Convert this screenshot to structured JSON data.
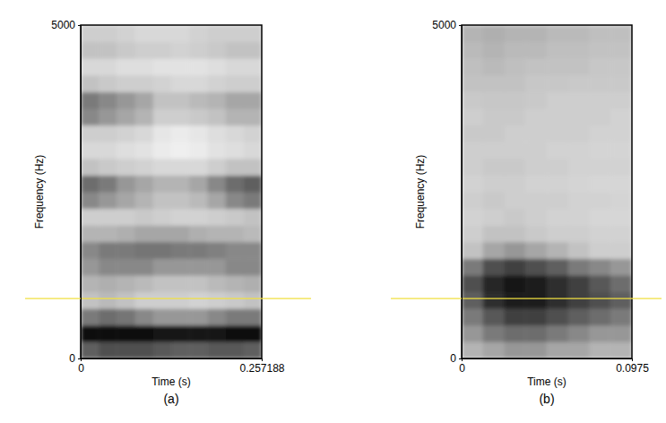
{
  "chart_data": [
    {
      "type": "heatmap",
      "label": "(a)",
      "x_label": "Time (s)",
      "y_label": "Frequency (Hz)",
      "xlim": [
        0,
        0.257188
      ],
      "ylim": [
        0,
        5000
      ],
      "xticks": [
        0,
        0.257188
      ],
      "yticks": [
        0,
        5000
      ],
      "zlim": [
        0,
        1
      ],
      "cursor": {
        "frequency": 900
      },
      "time_bins": [
        0,
        0.0257,
        0.0514,
        0.0772,
        0.1029,
        0.1286,
        0.1543,
        0.18,
        0.2058,
        0.2315,
        0.257188
      ],
      "freq_bins": [
        0,
        250,
        500,
        750,
        1000,
        1250,
        1500,
        1750,
        2000,
        2250,
        2500,
        2750,
        3000,
        3250,
        3500,
        3750,
        4000,
        4250,
        4500,
        4750,
        5000
      ],
      "cells": [
        [
          0.7,
          0.75,
          0.75,
          0.75,
          0.72,
          0.7,
          0.7,
          0.72,
          0.72,
          0.7
        ],
        [
          0.95,
          0.97,
          0.97,
          0.95,
          0.93,
          0.93,
          0.92,
          0.93,
          0.95,
          0.95
        ],
        [
          0.6,
          0.65,
          0.62,
          0.55,
          0.5,
          0.5,
          0.5,
          0.55,
          0.6,
          0.6
        ],
        [
          0.35,
          0.38,
          0.35,
          0.3,
          0.3,
          0.3,
          0.28,
          0.3,
          0.32,
          0.35
        ],
        [
          0.4,
          0.42,
          0.4,
          0.38,
          0.35,
          0.35,
          0.35,
          0.38,
          0.4,
          0.42
        ],
        [
          0.5,
          0.55,
          0.55,
          0.55,
          0.5,
          0.5,
          0.5,
          0.5,
          0.55,
          0.55
        ],
        [
          0.55,
          0.6,
          0.6,
          0.62,
          0.62,
          0.6,
          0.6,
          0.58,
          0.55,
          0.55
        ],
        [
          0.4,
          0.4,
          0.42,
          0.45,
          0.45,
          0.45,
          0.42,
          0.4,
          0.4,
          0.38
        ],
        [
          0.3,
          0.3,
          0.3,
          0.32,
          0.3,
          0.28,
          0.28,
          0.3,
          0.32,
          0.35
        ],
        [
          0.55,
          0.5,
          0.45,
          0.4,
          0.35,
          0.35,
          0.38,
          0.45,
          0.55,
          0.6
        ],
        [
          0.65,
          0.6,
          0.5,
          0.45,
          0.4,
          0.4,
          0.45,
          0.55,
          0.65,
          0.7
        ],
        [
          0.35,
          0.32,
          0.3,
          0.28,
          0.25,
          0.25,
          0.25,
          0.3,
          0.35,
          0.35
        ],
        [
          0.25,
          0.25,
          0.22,
          0.2,
          0.15,
          0.12,
          0.15,
          0.2,
          0.22,
          0.25
        ],
        [
          0.3,
          0.3,
          0.28,
          0.25,
          0.18,
          0.15,
          0.18,
          0.22,
          0.25,
          0.28
        ],
        [
          0.55,
          0.5,
          0.45,
          0.4,
          0.3,
          0.3,
          0.32,
          0.35,
          0.4,
          0.4
        ],
        [
          0.6,
          0.55,
          0.5,
          0.45,
          0.35,
          0.35,
          0.38,
          0.4,
          0.45,
          0.45
        ],
        [
          0.35,
          0.32,
          0.3,
          0.3,
          0.28,
          0.25,
          0.25,
          0.28,
          0.3,
          0.3
        ],
        [
          0.25,
          0.25,
          0.22,
          0.22,
          0.2,
          0.2,
          0.2,
          0.22,
          0.25,
          0.25
        ],
        [
          0.35,
          0.35,
          0.32,
          0.3,
          0.3,
          0.28,
          0.3,
          0.32,
          0.35,
          0.35
        ],
        [
          0.3,
          0.3,
          0.28,
          0.25,
          0.25,
          0.25,
          0.28,
          0.3,
          0.3,
          0.3
        ]
      ]
    },
    {
      "type": "heatmap",
      "label": "(b)",
      "x_label": "Time (s)",
      "y_label": "Frequency (Hz)",
      "xlim": [
        0,
        0.0975
      ],
      "ylim": [
        0,
        5000
      ],
      "xticks": [
        0,
        0.0975
      ],
      "yticks": [
        0,
        5000
      ],
      "zlim": [
        0,
        1
      ],
      "cursor": {
        "frequency": 900
      },
      "time_bins": [
        0,
        0.0122,
        0.0244,
        0.0366,
        0.0488,
        0.0609,
        0.0731,
        0.0853,
        0.0975
      ],
      "freq_bins": [
        0,
        250,
        500,
        750,
        1000,
        1250,
        1500,
        1750,
        2000,
        2250,
        2500,
        2750,
        3000,
        3250,
        3500,
        3750,
        4000,
        4250,
        4500,
        4750,
        5000
      ],
      "cells": [
        [
          0.4,
          0.45,
          0.5,
          0.5,
          0.45,
          0.45,
          0.4,
          0.4
        ],
        [
          0.5,
          0.6,
          0.65,
          0.65,
          0.6,
          0.55,
          0.5,
          0.5
        ],
        [
          0.6,
          0.72,
          0.8,
          0.8,
          0.75,
          0.7,
          0.65,
          0.6
        ],
        [
          0.7,
          0.85,
          0.9,
          0.9,
          0.85,
          0.8,
          0.75,
          0.7
        ],
        [
          0.75,
          0.88,
          0.92,
          0.9,
          0.85,
          0.8,
          0.72,
          0.65
        ],
        [
          0.6,
          0.75,
          0.8,
          0.75,
          0.7,
          0.6,
          0.55,
          0.5
        ],
        [
          0.35,
          0.45,
          0.5,
          0.45,
          0.4,
          0.35,
          0.3,
          0.3
        ],
        [
          0.3,
          0.35,
          0.35,
          0.32,
          0.3,
          0.3,
          0.28,
          0.28
        ],
        [
          0.28,
          0.3,
          0.32,
          0.3,
          0.28,
          0.28,
          0.26,
          0.26
        ],
        [
          0.3,
          0.32,
          0.3,
          0.3,
          0.3,
          0.28,
          0.28,
          0.27
        ],
        [
          0.28,
          0.3,
          0.3,
          0.28,
          0.28,
          0.27,
          0.26,
          0.26
        ],
        [
          0.3,
          0.32,
          0.32,
          0.3,
          0.3,
          0.28,
          0.28,
          0.28
        ],
        [
          0.3,
          0.3,
          0.3,
          0.3,
          0.28,
          0.28,
          0.27,
          0.27
        ],
        [
          0.32,
          0.32,
          0.3,
          0.3,
          0.3,
          0.3,
          0.28,
          0.28
        ],
        [
          0.3,
          0.32,
          0.32,
          0.3,
          0.3,
          0.3,
          0.3,
          0.28
        ],
        [
          0.32,
          0.33,
          0.33,
          0.32,
          0.3,
          0.3,
          0.3,
          0.3
        ],
        [
          0.35,
          0.35,
          0.35,
          0.33,
          0.33,
          0.32,
          0.32,
          0.32
        ],
        [
          0.36,
          0.38,
          0.36,
          0.35,
          0.35,
          0.35,
          0.33,
          0.33
        ],
        [
          0.38,
          0.4,
          0.38,
          0.38,
          0.36,
          0.36,
          0.35,
          0.35
        ],
        [
          0.4,
          0.42,
          0.4,
          0.4,
          0.38,
          0.38,
          0.36,
          0.36
        ]
      ]
    }
  ]
}
